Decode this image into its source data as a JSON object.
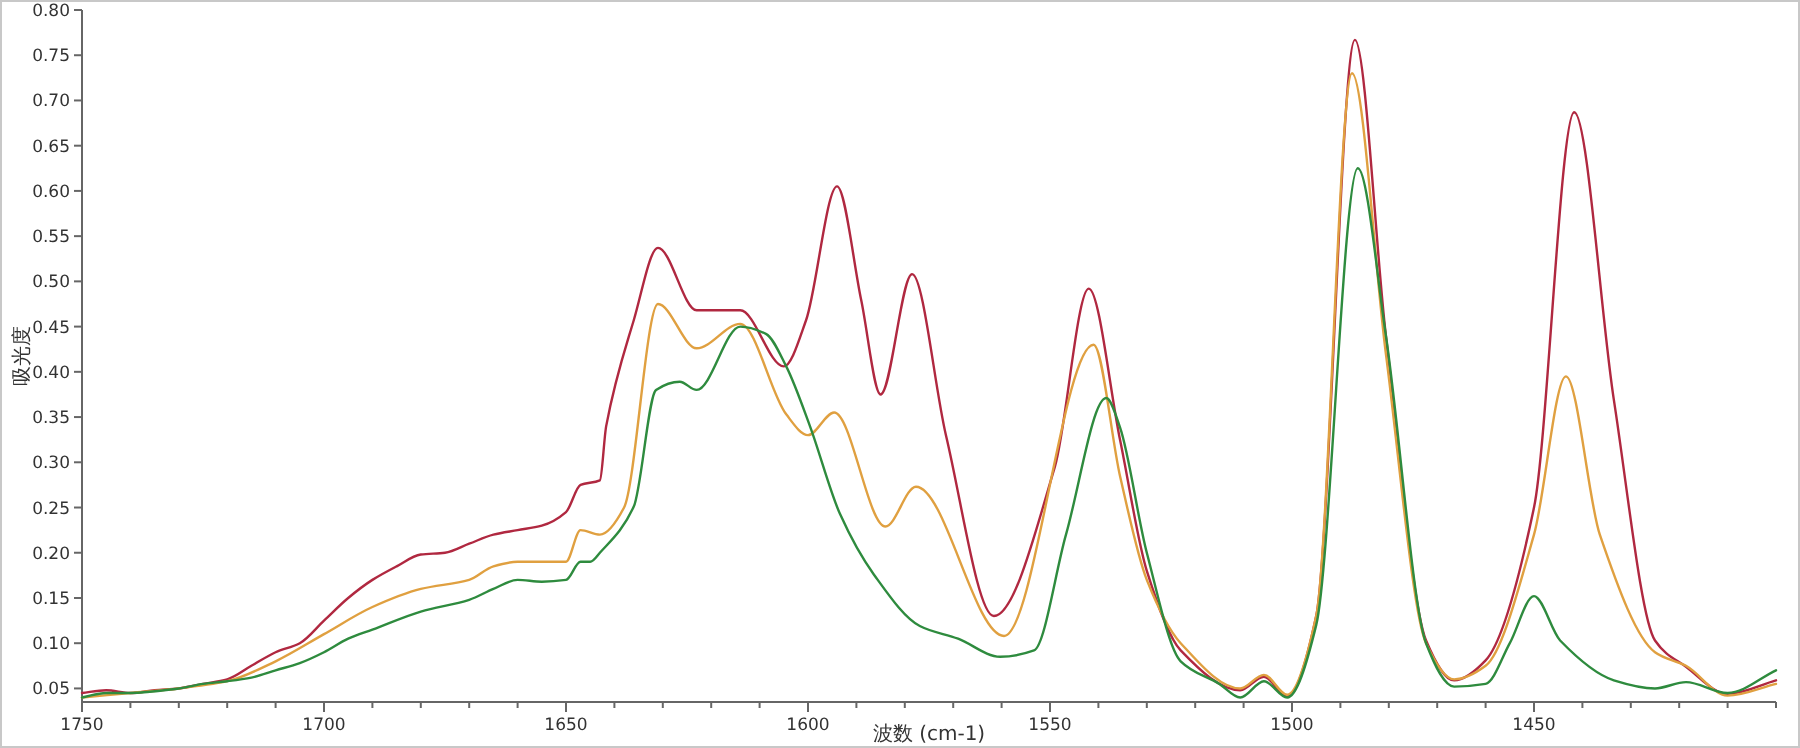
{
  "chart_data": {
    "type": "line",
    "xlabel": "波数 (cm-1)",
    "ylabel": "吸光度",
    "xlim": [
      1750,
      1400
    ],
    "ylim": [
      0.035,
      0.8
    ],
    "grid": false,
    "marker": "none",
    "line_style": "solid",
    "xticks": [
      1750,
      {
        "value": 1740,
        "label": null
      },
      {
        "value": 1730,
        "label": null
      },
      {
        "value": 1720,
        "label": null
      },
      {
        "value": 1710,
        "label": null
      },
      1700,
      {
        "value": 1690,
        "label": null
      },
      {
        "value": 1680,
        "label": null
      },
      {
        "value": 1670,
        "label": null
      },
      {
        "value": 1660,
        "label": null
      },
      1650,
      {
        "value": 1640,
        "label": null
      },
      {
        "value": 1630,
        "label": null
      },
      {
        "value": 1620,
        "label": null
      },
      {
        "value": 1610,
        "label": null
      },
      1600,
      {
        "value": 1590,
        "label": null
      },
      {
        "value": 1580,
        "label": null
      },
      {
        "value": 1570,
        "label": null
      },
      {
        "value": 1560,
        "label": null
      },
      1550,
      {
        "value": 1540,
        "label": null
      },
      {
        "value": 1530,
        "label": null
      },
      {
        "value": 1520,
        "label": null
      },
      {
        "value": 1510,
        "label": null
      },
      1500,
      {
        "value": 1490,
        "label": null
      },
      {
        "value": 1480,
        "label": null
      },
      {
        "value": 1470,
        "label": null
      },
      {
        "value": 1460,
        "label": null
      },
      1450,
      {
        "value": 1440,
        "label": null
      },
      {
        "value": 1430,
        "label": null
      },
      {
        "value": 1420,
        "label": null
      },
      {
        "value": 1410,
        "label": null
      },
      {
        "value": 1400,
        "label": null
      }
    ],
    "yticks": [
      {
        "value": 0.05,
        "label": "0.05"
      },
      {
        "value": 0.1,
        "label": "0.10"
      },
      {
        "value": 0.15,
        "label": "0.15"
      },
      {
        "value": 0.2,
        "label": "0.20"
      },
      {
        "value": 0.25,
        "label": "0.25"
      },
      {
        "value": 0.3,
        "label": "0.30"
      },
      {
        "value": 0.35,
        "label": "0.35"
      },
      {
        "value": 0.4,
        "label": "0.40"
      },
      {
        "value": 0.45,
        "label": "0.45"
      },
      {
        "value": 0.5,
        "label": "0.50"
      },
      {
        "value": 0.55,
        "label": "0.55"
      },
      {
        "value": 0.6,
        "label": "0.60"
      },
      {
        "value": 0.65,
        "label": "0.65"
      },
      {
        "value": 0.7,
        "label": "0.70"
      },
      {
        "value": 0.75,
        "label": "0.75"
      },
      {
        "value": 0.8,
        "label": "0.80"
      }
    ],
    "series": [
      {
        "color": "#b02840",
        "x": [
          1750,
          1745,
          1740,
          1735,
          1730,
          1725,
          1720,
          1715,
          1710,
          1705,
          1700,
          1695,
          1690,
          1685,
          1680,
          1675,
          1670,
          1665,
          1660,
          1655,
          1650,
          1647,
          1643,
          1641.7,
          1636,
          1631,
          1623,
          1614,
          1605,
          1600.4,
          1594,
          1589,
          1585,
          1578.5,
          1571.5,
          1561.6,
          1549,
          1542,
          1535.5,
          1530,
          1523,
          1510.7,
          1505.8,
          1501,
          1495,
          1487,
          1480.6,
          1472.3,
          1466.5,
          1460,
          1450,
          1441.7,
          1433.5,
          1425,
          1418.6,
          1410,
          1400
        ],
        "values": [
          0.045,
          0.048,
          0.045,
          0.048,
          0.05,
          0.055,
          0.06,
          0.075,
          0.09,
          0.1,
          0.125,
          0.15,
          0.17,
          0.185,
          0.198,
          0.2,
          0.21,
          0.22,
          0.225,
          0.23,
          0.245,
          0.275,
          0.28,
          0.34,
          0.457,
          0.537,
          0.468,
          0.468,
          0.406,
          0.457,
          0.605,
          0.479,
          0.375,
          0.508,
          0.33,
          0.13,
          0.295,
          0.492,
          0.324,
          0.18,
          0.092,
          0.048,
          0.063,
          0.041,
          0.13,
          0.767,
          0.44,
          0.103,
          0.059,
          0.081,
          0.25,
          0.687,
          0.369,
          0.103,
          0.074,
          0.044,
          0.059
        ]
      },
      {
        "color": "#e0a040",
        "x": [
          1750,
          1740,
          1730,
          1720,
          1710,
          1700,
          1690,
          1680,
          1670,
          1665,
          1660,
          1655,
          1650,
          1647,
          1643,
          1638,
          1631,
          1623,
          1614,
          1604.5,
          1600,
          1594.6,
          1584,
          1577.7,
          1559.5,
          1541,
          1535.5,
          1530,
          1523,
          1510.7,
          1505.8,
          1501,
          1495,
          1487.6,
          1480.6,
          1472.3,
          1466.5,
          1460,
          1450,
          1443.4,
          1436.4,
          1425,
          1418.6,
          1410,
          1400
        ],
        "values": [
          0.04,
          0.045,
          0.05,
          0.058,
          0.08,
          0.11,
          0.14,
          0.16,
          0.17,
          0.185,
          0.19,
          0.19,
          0.19,
          0.225,
          0.22,
          0.25,
          0.475,
          0.426,
          0.453,
          0.353,
          0.33,
          0.355,
          0.229,
          0.273,
          0.108,
          0.43,
          0.284,
          0.17,
          0.1,
          0.05,
          0.065,
          0.043,
          0.13,
          0.73,
          0.42,
          0.1,
          0.06,
          0.075,
          0.22,
          0.395,
          0.22,
          0.09,
          0.075,
          0.042,
          0.055
        ]
      },
      {
        "color": "#2e8b3e",
        "x": [
          1750,
          1745,
          1740,
          1730,
          1725,
          1720,
          1715,
          1710,
          1705,
          1700,
          1695,
          1690,
          1680,
          1670,
          1665,
          1660,
          1655,
          1650,
          1647,
          1645,
          1643,
          1636,
          1631.4,
          1626.5,
          1623,
          1614,
          1608.7,
          1604.5,
          1599.6,
          1593.4,
          1586.4,
          1576.9,
          1569,
          1560.3,
          1553.3,
          1546.7,
          1538.4,
          1535.5,
          1530,
          1523,
          1515,
          1510.7,
          1505.8,
          1501,
          1495,
          1486.4,
          1480.6,
          1472.3,
          1466.5,
          1460,
          1455,
          1450,
          1444.6,
          1433.5,
          1425,
          1418.6,
          1410,
          1400
        ],
        "values": [
          0.04,
          0.045,
          0.045,
          0.05,
          0.055,
          0.058,
          0.062,
          0.07,
          0.078,
          0.09,
          0.105,
          0.115,
          0.135,
          0.148,
          0.16,
          0.17,
          0.168,
          0.17,
          0.19,
          0.19,
          0.2,
          0.251,
          0.38,
          0.389,
          0.38,
          0.45,
          0.442,
          0.406,
          0.34,
          0.243,
          0.176,
          0.119,
          0.105,
          0.085,
          0.092,
          0.22,
          0.371,
          0.338,
          0.2,
          0.08,
          0.055,
          0.04,
          0.058,
          0.04,
          0.12,
          0.625,
          0.44,
          0.1,
          0.052,
          0.055,
          0.1,
          0.152,
          0.103,
          0.059,
          0.05,
          0.057,
          0.045,
          0.07
        ]
      }
    ]
  }
}
